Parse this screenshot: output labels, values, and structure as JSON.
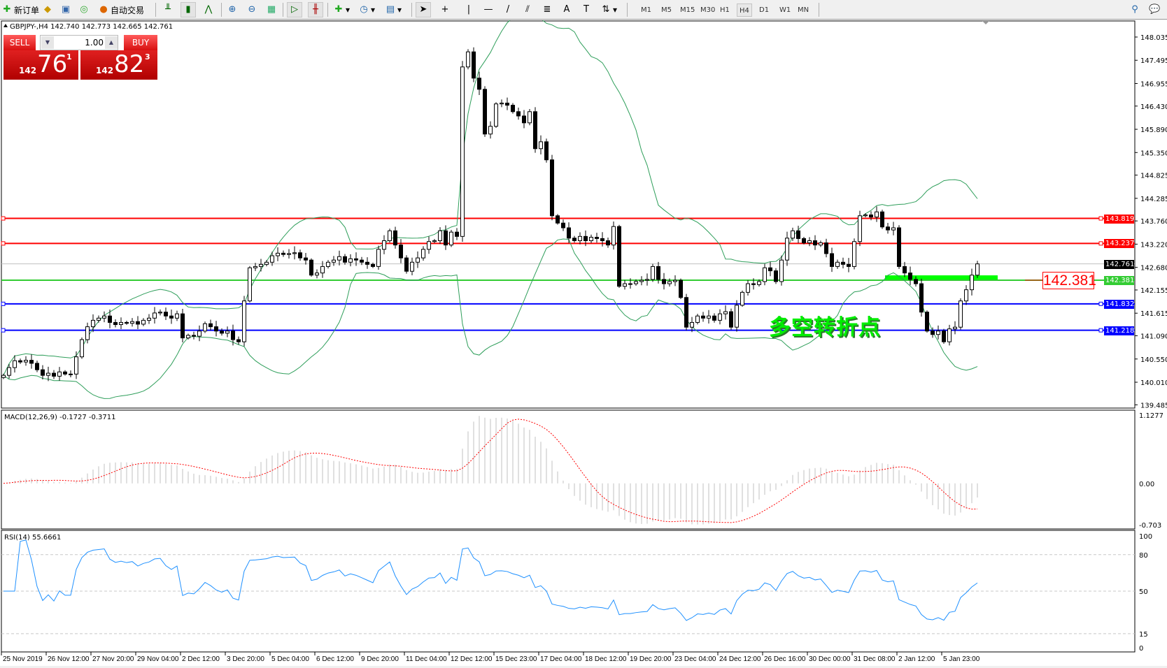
{
  "toolbar": {
    "new_order": "新订单",
    "auto_trade": "自动交易",
    "icons": [
      "new-order-icon",
      "market-watch-icon",
      "navigator-icon",
      "signals-icon",
      "auto-trading-icon",
      "bar-chart-icon",
      "candlestick-icon",
      "line-chart-icon",
      "zoom-in-icon",
      "zoom-out-icon",
      "tile-windows-icon",
      "autoscroll-icon",
      "chart-shift-icon",
      "indicators-icon",
      "periods-icon",
      "templates-icon",
      "cursor-icon",
      "crosshair-icon",
      "vertical-line-icon",
      "horizontal-line-icon",
      "trendline-icon",
      "equidistant-channel-icon",
      "fibonacci-icon",
      "text-icon",
      "text-label-icon",
      "arrows-icon",
      "search-icon",
      "chat-icon"
    ],
    "timeframes": [
      "M1",
      "M5",
      "M15",
      "M30",
      "H1",
      "H4",
      "D1",
      "W1",
      "MN"
    ],
    "active_timeframe": "H4"
  },
  "chart": {
    "header": "GBPJPY-,H4  142.740 142.773 142.665 142.761",
    "trade": {
      "sell": "SELL",
      "buy": "BUY",
      "lot": "1.00",
      "bid_prefix": "142",
      "bid_big": "76",
      "bid_sup": "1",
      "ask_prefix": "142",
      "ask_big": "82",
      "ask_sup": "3"
    },
    "annotation": "多空转折点",
    "price_box": "142.381",
    "colors": {
      "resistance": "#ff0000",
      "support": "#0000ff",
      "pivot": "#33cc33",
      "bollinger": "#2e9e5a",
      "rsi": "#1e90ff",
      "macd_signal": "#ff0000",
      "macd_hist": "#c0c0c0",
      "bid_line": "#c0c0c0"
    }
  },
  "chart_data": [
    {
      "type": "candlestick",
      "symbol": "GBPJPY-",
      "timeframe": "H4",
      "y_ticks": [
        "148.035",
        "147.495",
        "146.955",
        "146.430",
        "145.890",
        "145.350",
        "144.825",
        "144.285",
        "143.760",
        "143.220",
        "142.680",
        "142.155",
        "141.615",
        "141.090",
        "140.550",
        "140.010",
        "139.485"
      ],
      "ylim": [
        139.485,
        148.42
      ],
      "x_ticks": [
        "25 Nov 2019",
        "26 Nov 12:00",
        "27 Nov 20:00",
        "29 Nov 04:00",
        "2 Dec 12:00",
        "3 Dec 20:00",
        "5 Dec 04:00",
        "6 Dec 12:00",
        "9 Dec 20:00",
        "11 Dec 04:00",
        "12 Dec 12:00",
        "15 Dec 23:00",
        "17 Dec 04:00",
        "18 Dec 12:00",
        "19 Dec 20:00",
        "23 Dec 04:00",
        "24 Dec 12:00",
        "26 Dec 16:00",
        "30 Dec 00:00",
        "31 Dec 08:00",
        "2 Jan 12:00",
        "5 Jan 23:00"
      ],
      "levels": [
        {
          "price": "143.819",
          "color": "#ff0000"
        },
        {
          "price": "143.237",
          "color": "#ff0000"
        },
        {
          "price": "142.761",
          "color": "#000000"
        },
        {
          "price": "142.381",
          "color": "#33cc33"
        },
        {
          "price": "141.832",
          "color": "#0000ff"
        },
        {
          "price": "141.218",
          "color": "#0000ff"
        }
      ],
      "overlay": "Bollinger Bands",
      "closes": [
        140.17,
        140.35,
        140.51,
        140.48,
        140.52,
        140.45,
        140.3,
        140.17,
        140.22,
        140.15,
        140.25,
        140.2,
        140.2,
        140.6,
        141.0,
        141.3,
        141.45,
        141.5,
        141.55,
        141.4,
        141.35,
        141.4,
        141.38,
        141.42,
        141.36,
        141.45,
        141.5,
        141.62,
        141.64,
        141.55,
        141.5,
        141.6,
        141.04,
        141.1,
        141.08,
        141.2,
        141.37,
        141.3,
        141.2,
        141.15,
        141.2,
        141.0,
        140.95,
        141.9,
        142.67,
        142.7,
        142.75,
        142.8,
        142.95,
        143.01,
        142.98,
        143.0,
        143.02,
        142.9,
        142.85,
        142.5,
        142.55,
        142.7,
        142.8,
        142.85,
        142.93,
        142.8,
        142.88,
        142.85,
        142.8,
        142.75,
        142.7,
        143.1,
        143.3,
        143.53,
        143.2,
        142.9,
        142.59,
        142.8,
        142.9,
        143.1,
        143.28,
        143.3,
        143.53,
        143.2,
        143.5,
        143.4,
        147.34,
        147.69,
        147.08,
        146.82,
        145.78,
        145.96,
        146.48,
        146.5,
        146.45,
        146.3,
        146.2,
        146.04,
        146.3,
        145.44,
        145.6,
        145.18,
        143.88,
        143.71,
        143.6,
        143.36,
        143.3,
        143.4,
        143.3,
        143.38,
        143.35,
        143.3,
        143.2,
        143.63,
        142.24,
        142.3,
        142.3,
        142.35,
        142.38,
        142.4,
        142.7,
        142.4,
        142.3,
        142.35,
        142.38,
        141.98,
        141.29,
        141.4,
        141.55,
        141.5,
        141.55,
        141.45,
        141.6,
        141.65,
        141.29,
        141.8,
        142.1,
        142.3,
        142.28,
        142.35,
        142.67,
        142.6,
        142.35,
        142.85,
        143.36,
        143.53,
        143.35,
        143.25,
        143.3,
        143.2,
        143.25,
        143.0,
        142.7,
        142.8,
        142.75,
        142.7,
        143.28,
        143.88,
        143.9,
        143.85,
        143.97,
        143.62,
        143.55,
        143.6,
        142.7,
        142.55,
        142.4,
        142.3,
        141.64,
        141.2,
        141.12,
        141.2,
        140.95,
        141.25,
        141.29,
        141.9,
        142.16,
        142.5,
        142.761
      ]
    },
    {
      "type": "line",
      "title": "MACD(12,26,9) -0.1727 -0.3711",
      "y_ticks": [
        "1.1277",
        "0.00",
        "-0.703"
      ],
      "ylim": [
        -0.703,
        1.1277
      ]
    },
    {
      "type": "line",
      "title": "RSI(14) 55.6661",
      "y_ticks": [
        "100",
        "80",
        "50",
        "15",
        "0"
      ],
      "ylim": [
        0,
        100
      ],
      "levels": [
        80,
        50,
        15
      ]
    }
  ]
}
